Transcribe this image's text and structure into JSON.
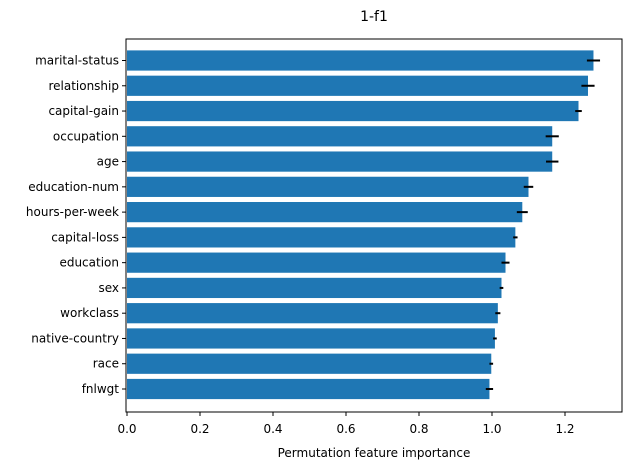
{
  "chart_data": {
    "type": "bar",
    "orientation": "horizontal",
    "title": "1-f1",
    "xlabel": "Permutation feature importance",
    "ylabel": "",
    "xlim": [
      0,
      1.37
    ],
    "xticks": [
      "0.0",
      "0.2",
      "0.4",
      "0.6",
      "0.8",
      "1.0",
      "1.2"
    ],
    "xtick_values": [
      0,
      0.2,
      0.4,
      0.6,
      0.8,
      1.0,
      1.2
    ],
    "categories": [
      "marital-status",
      "relationship",
      "capital-gain",
      "occupation",
      "age",
      "education-num",
      "hours-per-week",
      "capital-loss",
      "education",
      "sex",
      "workclass",
      "native-country",
      "race",
      "fnlwgt"
    ],
    "values": [
      1.278,
      1.263,
      1.237,
      1.165,
      1.165,
      1.1,
      1.083,
      1.064,
      1.037,
      1.026,
      1.016,
      1.008,
      0.998,
      0.993
    ],
    "errors": [
      0.018,
      0.018,
      0.009,
      0.018,
      0.017,
      0.013,
      0.015,
      0.006,
      0.011,
      0.005,
      0.007,
      0.005,
      0.005,
      0.01
    ],
    "bar_color": "#1f77b4",
    "error_color": "#000000",
    "grid": false,
    "legend": "none"
  }
}
